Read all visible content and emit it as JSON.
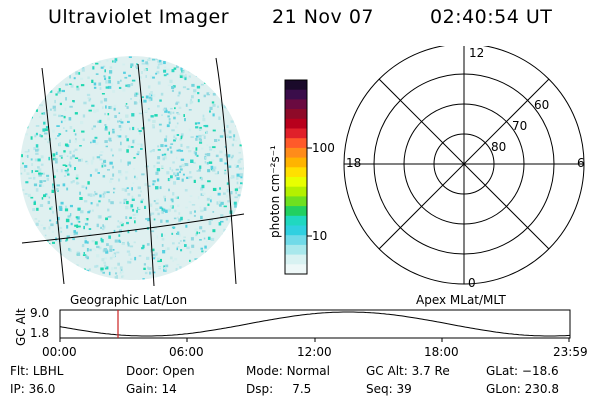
{
  "header": {
    "title": "Ultraviolet Imager",
    "date": "21 Nov 07",
    "time": "02:40:54 UT"
  },
  "colorbar": {
    "unit_label": "photon cm⁻²s⁻¹",
    "ticks": [
      "100",
      "10"
    ],
    "colors": [
      "#1a0a2a",
      "#3a0d4a",
      "#6a0a40",
      "#8e0a28",
      "#b8001c",
      "#e0202a",
      "#ff5a2a",
      "#ff8c1a",
      "#ffb400",
      "#ffe000",
      "#e8ff00",
      "#b4f000",
      "#6ee020",
      "#22d060",
      "#20d8c0",
      "#30d0e0",
      "#70dae8",
      "#a8e8ec",
      "#d8f2f2",
      "#eef8f8"
    ]
  },
  "left_panel": {
    "caption": "Geographic Lat/Lon"
  },
  "right_panel": {
    "caption": "Apex MLat/MLT",
    "mlt_labels": {
      "top": "12",
      "left": "18",
      "right": "6",
      "bottom": "0"
    },
    "lat_labels": [
      "60",
      "70",
      "80"
    ]
  },
  "altitude_plot": {
    "ylabel": "GC Alt",
    "yticks": [
      "9.0",
      "1.8"
    ],
    "xticks": [
      "00:00",
      "06:00",
      "12:00",
      "18:00",
      "23:59"
    ],
    "marker_color": "#cc2020"
  },
  "status": {
    "row1": [
      {
        "key": "Flt:",
        "val": "LBHL"
      },
      {
        "key": "Door:",
        "val": "Open"
      },
      {
        "key": "Mode:",
        "val": "Normal"
      },
      {
        "key": "GC Alt:",
        "val": "3.7 Re"
      },
      {
        "key": "GLat:",
        "val": "−18.6"
      }
    ],
    "row2": [
      {
        "key": "IP:",
        "val": "36.0"
      },
      {
        "key": "Gain:",
        "val": "14"
      },
      {
        "key": "Dsp:",
        "val": "7.5"
      },
      {
        "key": "Seq:",
        "val": "39"
      },
      {
        "key": "GLon:",
        "val": "230.8"
      }
    ]
  }
}
